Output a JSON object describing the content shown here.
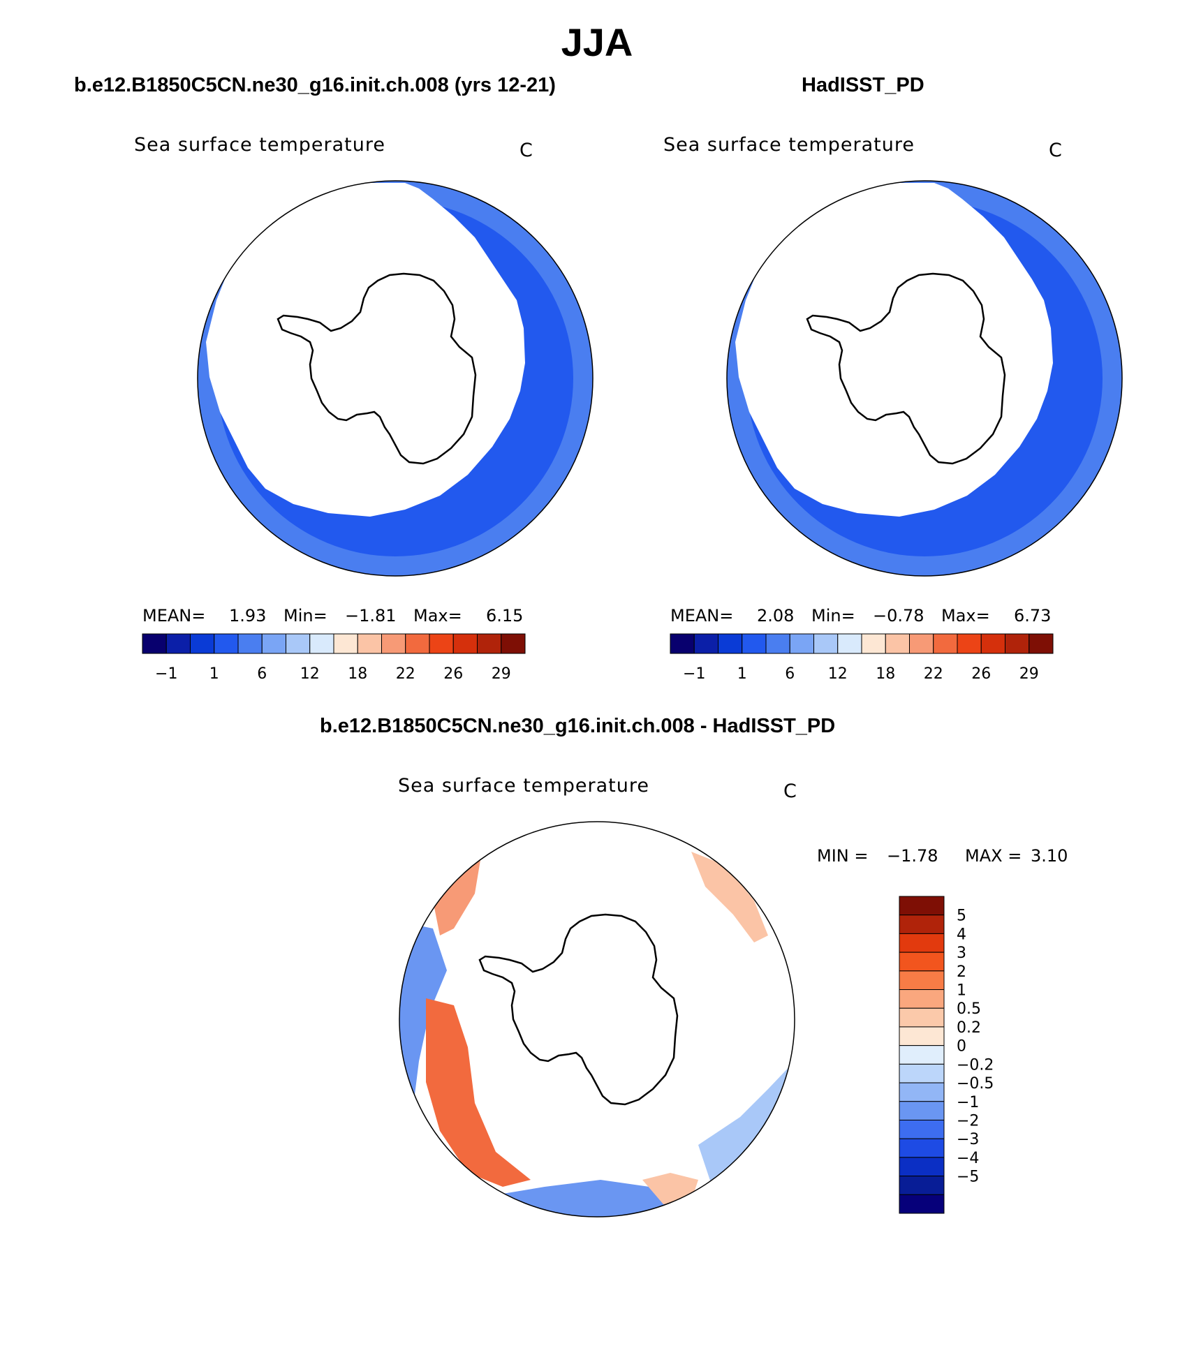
{
  "title": "JJA",
  "panels": [
    {
      "case_label": "b.e12.B1850C5CN.ne30_g16.init.ch.008 (yrs 12-21)",
      "variable": "Sea surface temperature",
      "units": "C",
      "stats": {
        "mean_label": "MEAN=",
        "mean": "1.93",
        "min_label": "Min=",
        "min": "−1.81",
        "max_label": "Max=",
        "max": "6.15"
      }
    },
    {
      "case_label": "HadISST_PD",
      "variable": "Sea surface temperature",
      "units": "C",
      "stats": {
        "mean_label": "MEAN=",
        "mean": "2.08",
        "min_label": "Min=",
        "min": "−0.78",
        "max_label": "Max=",
        "max": "6.73"
      }
    }
  ],
  "abs_colorbar": {
    "colors": [
      "#08006e",
      "#0b1fa8",
      "#0a3bd6",
      "#2259ee",
      "#4a7ef0",
      "#7aa5f5",
      "#a9c8f8",
      "#d9eafc",
      "#fde7d4",
      "#fbc4a6",
      "#f79a76",
      "#f26a3e",
      "#ec4416",
      "#d5300c",
      "#b0230a",
      "#7e0f05"
    ],
    "labels": [
      "−1",
      "1",
      "6",
      "12",
      "18",
      "22",
      "26",
      "29"
    ]
  },
  "difference": {
    "case_label": "b.e12.B1850C5CN.ne30_g16.init.ch.008 - HadISST_PD",
    "variable": "Sea surface temperature",
    "units": "C",
    "min_label": "MIN =",
    "min": "−1.78",
    "max_label": "MAX =",
    "max": "3.10",
    "colorbar": {
      "colors": [
        "#7e0f05",
        "#b0230a",
        "#e23a0e",
        "#f2551e",
        "#f87c46",
        "#faa77e",
        "#fbc9aa",
        "#fde7d4",
        "#e0eefc",
        "#bcd6fa",
        "#92b6f6",
        "#6a96f2",
        "#3d6df0",
        "#1e4be4",
        "#0b2fc4",
        "#081d96",
        "#06007a"
      ],
      "labels": [
        "5",
        "4",
        "3",
        "2",
        "1",
        "0.5",
        "0.2",
        "0",
        "−0.2",
        "−0.5",
        "−1",
        "−2",
        "−3",
        "−4",
        "−5"
      ]
    }
  },
  "map_colors": {
    "ocean_dark": "#0a3bd6",
    "ocean_mid": "#2259ee",
    "ocean_light": "#4a7ef0",
    "ocean_pale": "#7aa5f5",
    "diff_red": "#f26a3e",
    "diff_orange": "#f79a76",
    "diff_peach": "#fbc4a6",
    "diff_blue": "#6a96f2",
    "diff_lightblue": "#a9c8f8"
  }
}
